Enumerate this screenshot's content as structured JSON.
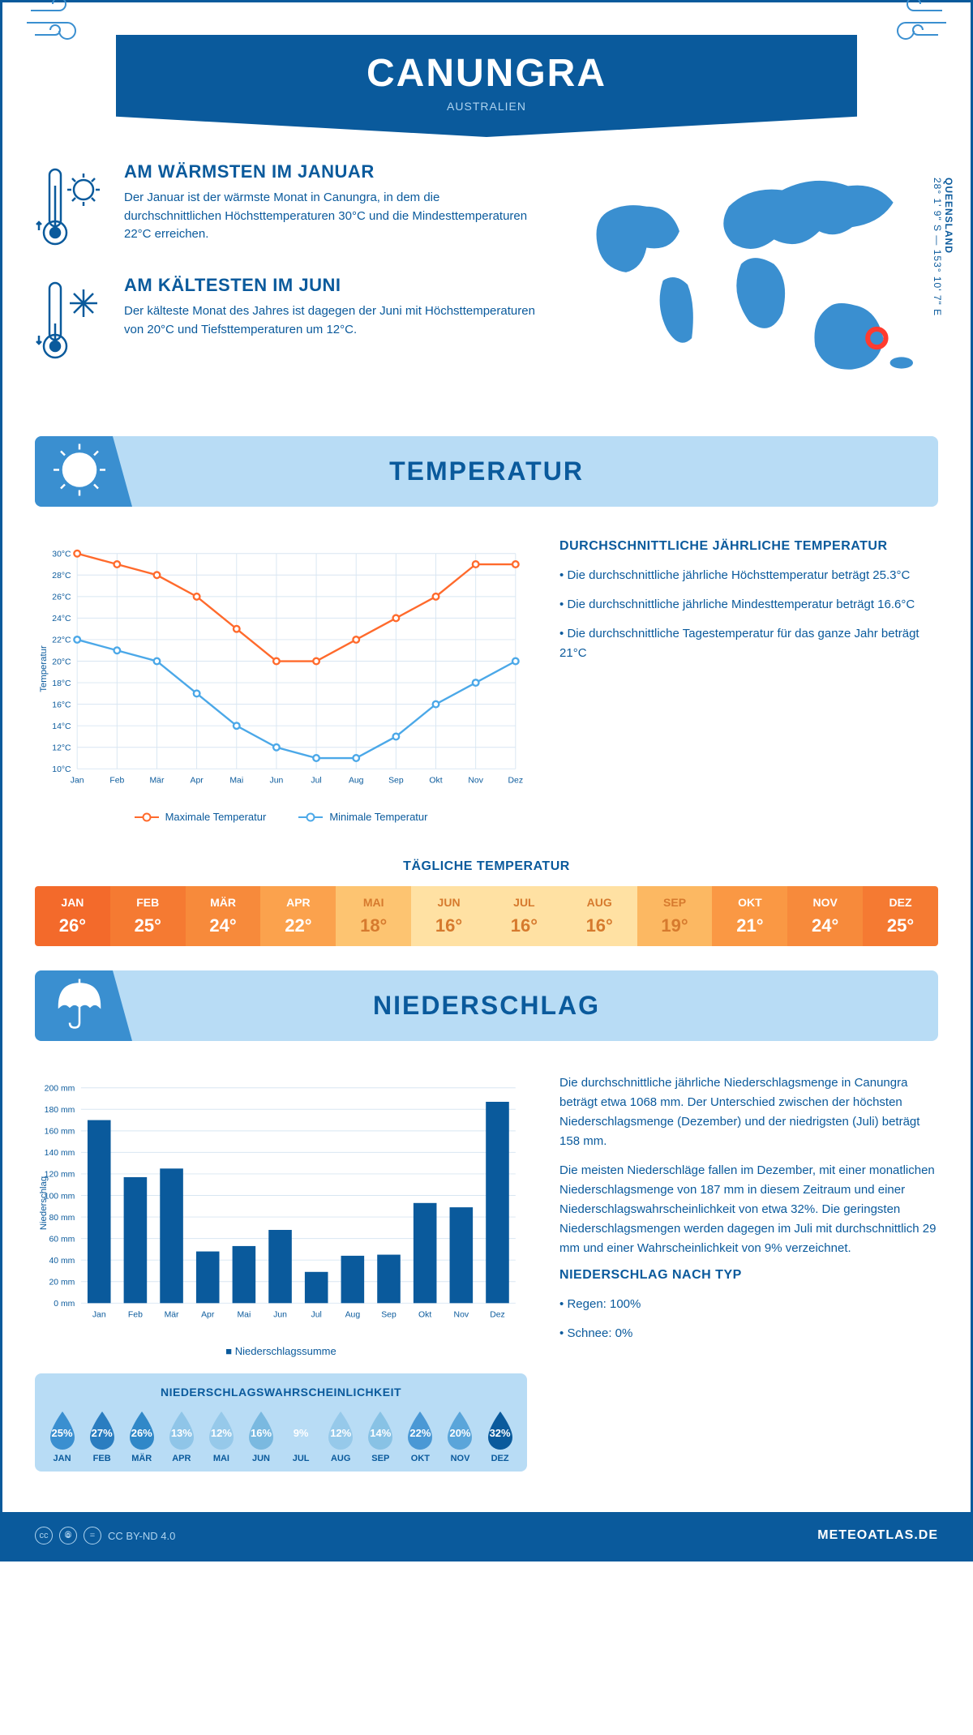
{
  "header": {
    "city": "CANUNGRA",
    "country": "AUSTRALIEN"
  },
  "location": {
    "region": "QUEENSLAND",
    "coords": "28° 1' 9\" S — 153° 10' 7\" E"
  },
  "warm": {
    "title": "AM WÄRMSTEN IM JANUAR",
    "text": "Der Januar ist der wärmste Monat in Canungra, in dem die durchschnittlichen Höchsttemperaturen 30°C und die Mindesttemperaturen 22°C erreichen."
  },
  "cold": {
    "title": "AM KÄLTESTEN IM JUNI",
    "text": "Der kälteste Monat des Jahres ist dagegen der Juni mit Höchsttemperaturen von 20°C und Tiefsttemperaturen um 12°C."
  },
  "temp_section": {
    "title": "TEMPERATUR",
    "chart": {
      "months": [
        "Jan",
        "Feb",
        "Mär",
        "Apr",
        "Mai",
        "Jun",
        "Jul",
        "Aug",
        "Sep",
        "Okt",
        "Nov",
        "Dez"
      ],
      "max": [
        30,
        29,
        28,
        26,
        23,
        20,
        20,
        22,
        24,
        26,
        29,
        29
      ],
      "max_color": "#ff6a2c",
      "min": [
        22,
        21,
        20,
        17,
        14,
        12,
        11,
        11,
        13,
        16,
        18,
        20
      ],
      "min_color": "#4ba8e8",
      "ylabel": "Temperatur",
      "ylim": [
        10,
        30
      ],
      "ystep": 2,
      "grid_color": "#d8e6f2",
      "legend_max": "Maximale Temperatur",
      "legend_min": "Minimale Temperatur"
    },
    "text": {
      "title": "DURCHSCHNITTLICHE JÄHRLICHE TEMPERATUR",
      "b1": "• Die durchschnittliche jährliche Höchsttemperatur beträgt 25.3°C",
      "b2": "• Die durchschnittliche jährliche Mindesttemperatur beträgt 16.6°C",
      "b3": "• Die durchschnittliche Tagestemperatur für das ganze Jahr beträgt 21°C"
    },
    "daily": {
      "title": "TÄGLICHE TEMPERATUR",
      "months": [
        "JAN",
        "FEB",
        "MÄR",
        "APR",
        "MAI",
        "JUN",
        "JUL",
        "AUG",
        "SEP",
        "OKT",
        "NOV",
        "DEZ"
      ],
      "values": [
        "26°",
        "25°",
        "24°",
        "22°",
        "18°",
        "16°",
        "16°",
        "16°",
        "19°",
        "21°",
        "24°",
        "25°"
      ],
      "bg_colors": [
        "#f36a2b",
        "#f57a32",
        "#f78a3b",
        "#fba24d",
        "#fdc471",
        "#ffe1a3",
        "#ffe1a3",
        "#ffe1a3",
        "#fcb862",
        "#fa9844",
        "#f78a3b",
        "#f57a32"
      ],
      "text_colors": [
        "#ffffff",
        "#ffffff",
        "#ffffff",
        "#ffffff",
        "#d67a2e",
        "#d67a2e",
        "#d67a2e",
        "#d67a2e",
        "#d67a2e",
        "#ffffff",
        "#ffffff",
        "#ffffff"
      ]
    }
  },
  "precip_section": {
    "title": "NIEDERSCHLAG",
    "chart": {
      "months": [
        "Jan",
        "Feb",
        "Mär",
        "Apr",
        "Mai",
        "Jun",
        "Jul",
        "Aug",
        "Sep",
        "Okt",
        "Nov",
        "Dez"
      ],
      "values": [
        170,
        117,
        125,
        48,
        53,
        68,
        29,
        44,
        45,
        93,
        89,
        187
      ],
      "bar_color": "#0a5a9c",
      "ylabel": "Niederschlag",
      "ylim": [
        0,
        200
      ],
      "ystep": 20,
      "grid_color": "#d8e6f2",
      "legend": "Niederschlagssumme"
    },
    "text": {
      "p1": "Die durchschnittliche jährliche Niederschlagsmenge in Canungra beträgt etwa 1068 mm. Der Unterschied zwischen der höchsten Niederschlagsmenge (Dezember) und der niedrigsten (Juli) beträgt 158 mm.",
      "p2": "Die meisten Niederschläge fallen im Dezember, mit einer monatlichen Niederschlagsmenge von 187 mm in diesem Zeitraum und einer Niederschlagswahrscheinlichkeit von etwa 32%. Die geringsten Niederschlagsmengen werden dagegen im Juli mit durchschnittlich 29 mm und einer Wahrscheinlichkeit von 9% verzeichnet.",
      "type_title": "NIEDERSCHLAG NACH TYP",
      "type1": "• Regen: 100%",
      "type2": "• Schnee: 0%"
    },
    "prob": {
      "title": "NIEDERSCHLAGSWAHRSCHEINLICHKEIT",
      "months": [
        "JAN",
        "FEB",
        "MÄR",
        "APR",
        "MAI",
        "JUN",
        "JUL",
        "AUG",
        "SEP",
        "OKT",
        "NOV",
        "DEZ"
      ],
      "values": [
        "25%",
        "27%",
        "26%",
        "13%",
        "12%",
        "16%",
        "9%",
        "12%",
        "14%",
        "22%",
        "20%",
        "32%"
      ],
      "fill_colors": [
        "#3a8fd0",
        "#2a7dc0",
        "#3088c8",
        "#8fc5e8",
        "#96c9ea",
        "#7ab9e0",
        "#b8dcf5",
        "#96c9ea",
        "#88c2e5",
        "#4a98d5",
        "#5aa5da",
        "#0a5a9c"
      ]
    }
  },
  "footer": {
    "license": "CC BY-ND 4.0",
    "brand": "METEOATLAS.DE"
  },
  "colors": {
    "primary": "#0a5a9c",
    "light": "#b8dcf5",
    "accent": "#3a8fd0"
  }
}
